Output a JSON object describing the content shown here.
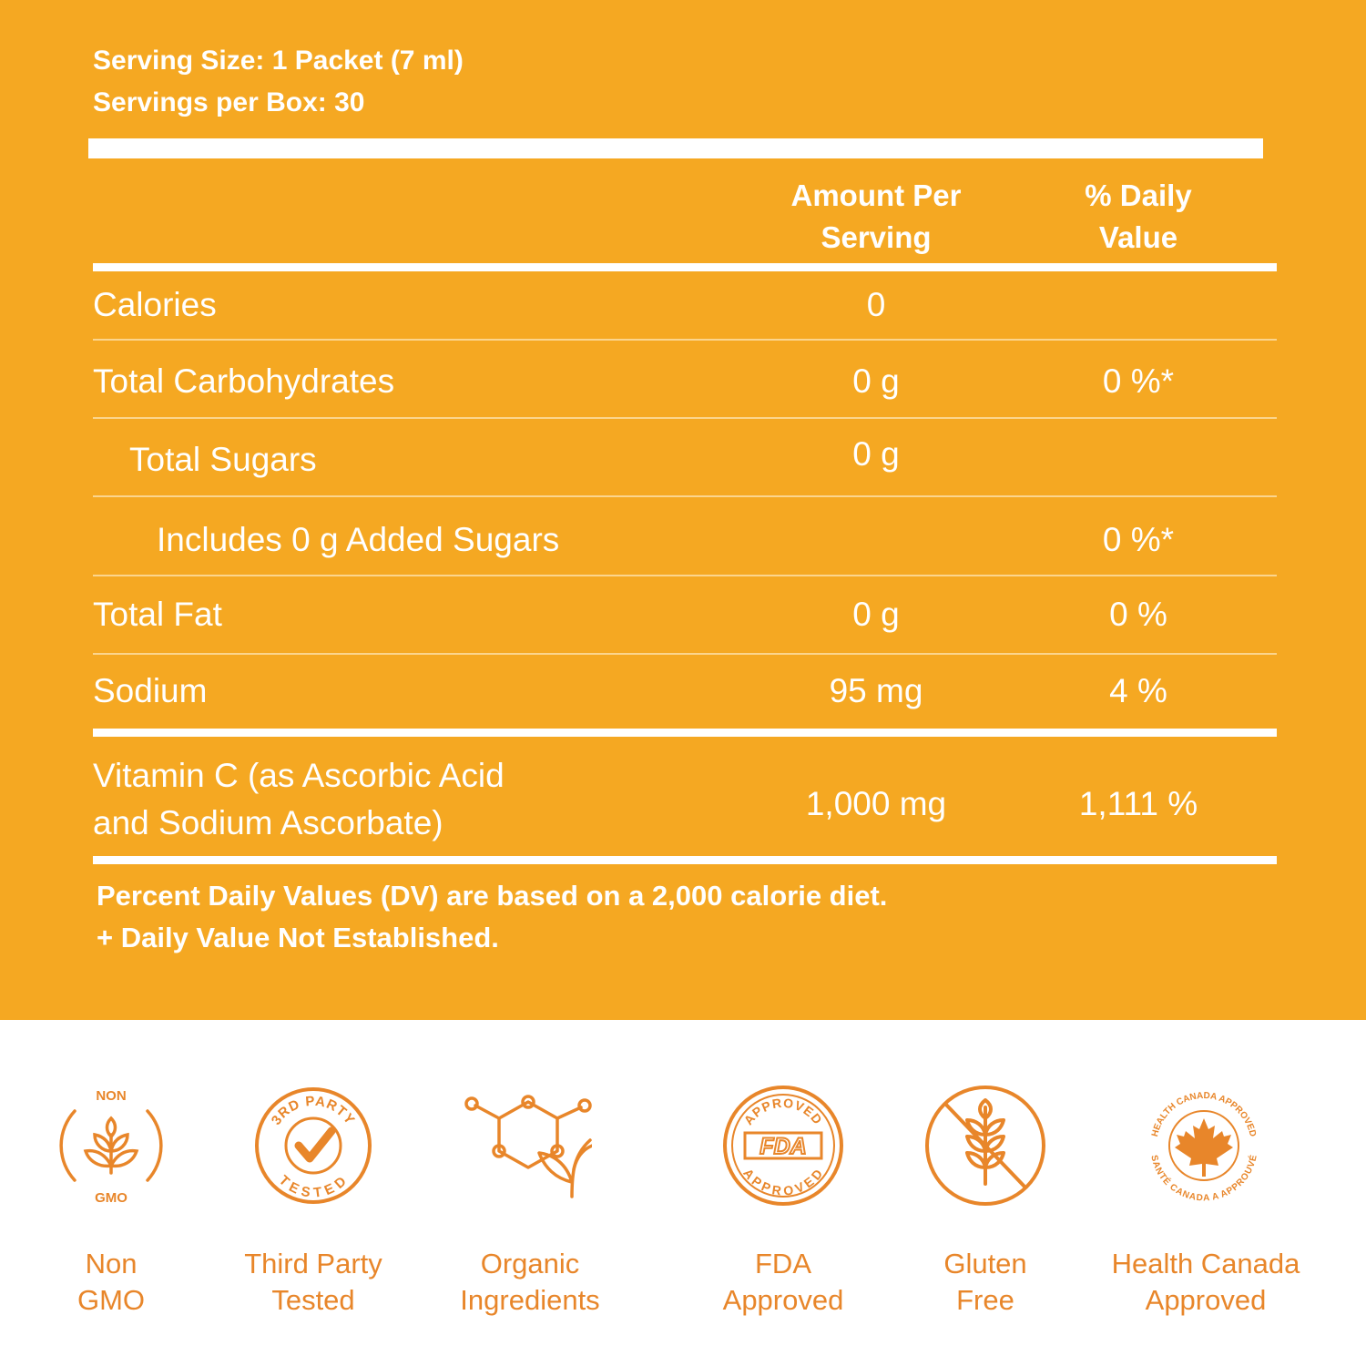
{
  "header": {
    "serving_size": "Serving Size: 1 Packet (7 ml)",
    "servings_per_box": "Servings per Box: 30"
  },
  "columns": {
    "amount_line1": "Amount Per",
    "amount_line2": "Serving",
    "dv_line1": "% Daily",
    "dv_line2": "Value"
  },
  "rows": [
    {
      "name": "Calories",
      "amount": "0",
      "dv": ""
    },
    {
      "name": "Total Carbohydrates",
      "amount": "0 g",
      "dv": "0 %*"
    },
    {
      "name": "Total Sugars",
      "amount": "0 g",
      "dv": ""
    },
    {
      "name": "Includes 0 g Added Sugars",
      "amount": "",
      "dv": "0 %*"
    },
    {
      "name": "Total Fat",
      "amount": "0 g",
      "dv": "0 %"
    },
    {
      "name": "Sodium",
      "amount": "95 mg",
      "dv": "4 %"
    }
  ],
  "vitamin": {
    "name_line1": "Vitamin C (as Ascorbic Acid",
    "name_line2": "and Sodium  Ascorbate)",
    "amount": "1,000 mg",
    "dv": "1,111 %"
  },
  "footnotes": {
    "line1": "Percent Daily Values (DV) are based on a 2,000 calorie diet.",
    "line2": "+ Daily Value Not Established."
  },
  "badges": [
    {
      "icon": "non-gmo-icon",
      "line1": "Non",
      "line2": "GMO",
      "ring_top": "NON",
      "ring_bottom": "GMO"
    },
    {
      "icon": "third-party-tested-icon",
      "line1": "Third Party",
      "line2": "Tested",
      "ring_top": "3RD PARTY",
      "ring_bottom": "TESTED"
    },
    {
      "icon": "organic-ingredients-icon",
      "line1": "Organic",
      "line2": "Ingredients"
    },
    {
      "icon": "fda-approved-icon",
      "line1": "FDA",
      "line2": "Approved",
      "ring_top": "APPROVED",
      "center": "FDA",
      "ring_bottom": "APPROVED"
    },
    {
      "icon": "gluten-free-icon",
      "line1": "Gluten",
      "line2": "Free"
    },
    {
      "icon": "health-canada-icon",
      "line1": "Health Canada",
      "line2": "Approved",
      "ring_top": "HEALTH CANADA APPROVED",
      "ring_bottom": "SANTÉ CANADA A APPROUVÉ"
    }
  ],
  "colors": {
    "panel": "#f5a822",
    "text_on_panel": "#ffffff",
    "badge_orange": "#e8862a"
  }
}
